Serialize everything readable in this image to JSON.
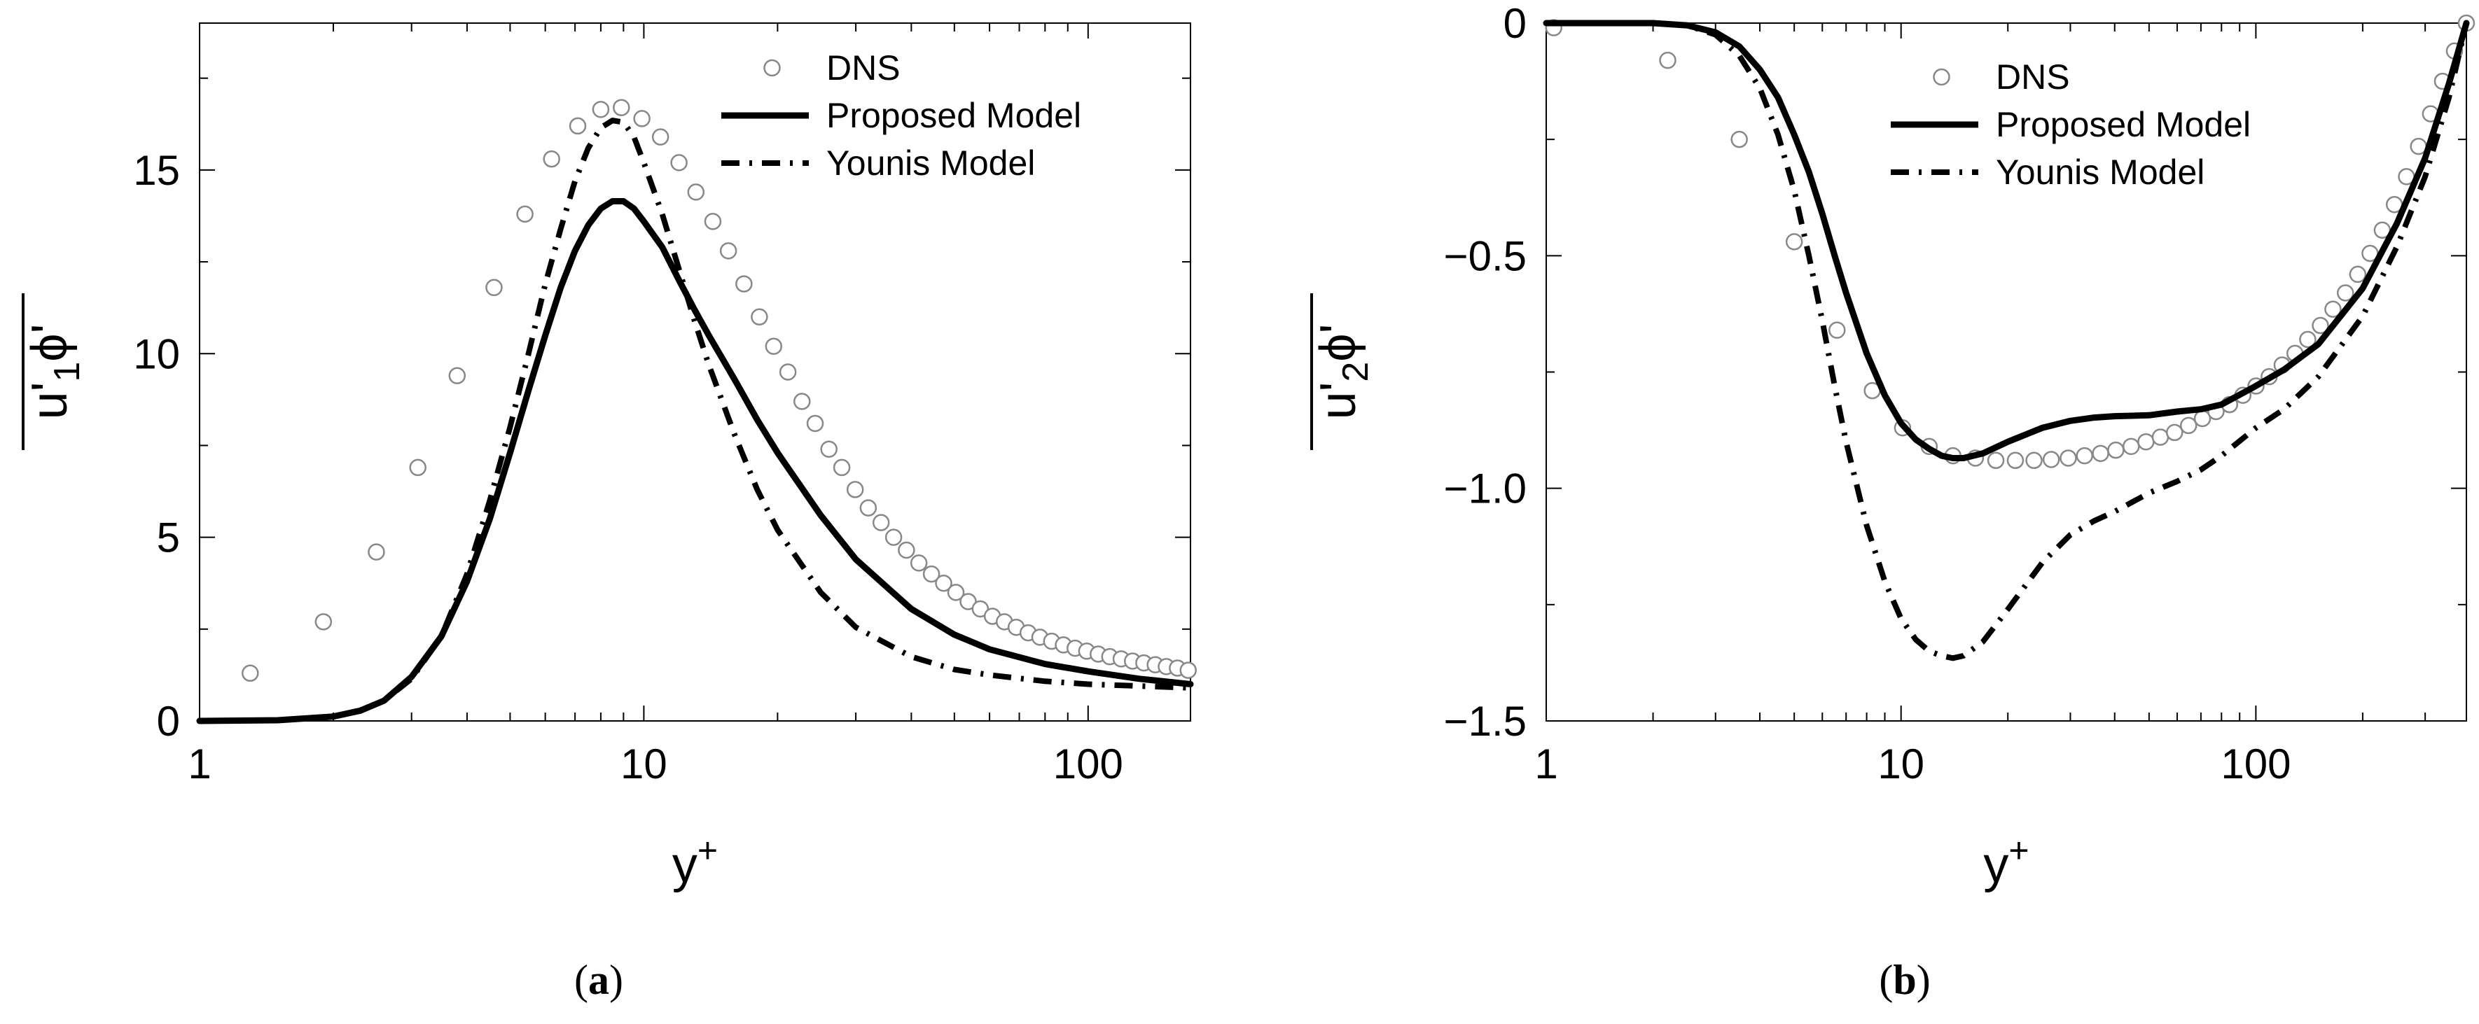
{
  "chart_data": [
    {
      "type": "line",
      "panel_label": "(a)",
      "xlabel": "y",
      "xlabel_sup": "+",
      "ylabel_base": "u",
      "ylabel_sub": "1",
      "ylabel_phi": "ϕ",
      "xscale": "log",
      "xlim": [
        1,
        170
      ],
      "ylim": [
        0,
        19
      ],
      "xticks": [
        1,
        10,
        100
      ],
      "xtick_labels": [
        "1",
        "10",
        "100"
      ],
      "yticks": [
        0,
        5,
        10,
        15
      ],
      "ytick_labels": [
        "0",
        "5",
        "10",
        "15"
      ],
      "legend_position": "top-right",
      "series": [
        {
          "name": "DNS",
          "style": "markers",
          "x": [
            1.3,
            1.9,
            2.5,
            3.1,
            3.8,
            4.6,
            5.4,
            6.2,
            7.1,
            8.0,
            8.9,
            9.9,
            10.9,
            12.0,
            13.1,
            14.3,
            15.5,
            16.8,
            18.2,
            19.6,
            21.1,
            22.7,
            24.3,
            26.1,
            27.9,
            29.9,
            32.0,
            34.2,
            36.5,
            39.0,
            41.6,
            44.4,
            47.3,
            50.4,
            53.7,
            57.2,
            60.9,
            64.8,
            68.9,
            73.3,
            77.9,
            82.8,
            88.0,
            93.5,
            99.3,
            105.4,
            111.9,
            118.7,
            125.9,
            133.5,
            141.6,
            150.0,
            158.9,
            168.0
          ],
          "y": [
            1.3,
            2.7,
            4.6,
            6.9,
            9.4,
            11.8,
            13.8,
            15.3,
            16.2,
            16.65,
            16.7,
            16.4,
            15.9,
            15.2,
            14.4,
            13.6,
            12.8,
            11.9,
            11.0,
            10.2,
            9.5,
            8.7,
            8.1,
            7.4,
            6.9,
            6.3,
            5.8,
            5.4,
            5.0,
            4.65,
            4.3,
            4.0,
            3.75,
            3.5,
            3.25,
            3.05,
            2.85,
            2.7,
            2.55,
            2.4,
            2.28,
            2.17,
            2.07,
            1.98,
            1.9,
            1.82,
            1.75,
            1.69,
            1.63,
            1.58,
            1.53,
            1.48,
            1.44,
            1.38
          ]
        },
        {
          "name": "Proposed Model",
          "style": "solid",
          "x": [
            1,
            1.5,
            2,
            2.3,
            2.6,
            3,
            3.5,
            4,
            4.5,
            5,
            5.5,
            6,
            6.5,
            7,
            7.5,
            8,
            8.5,
            9,
            9.5,
            10,
            11,
            12,
            13,
            14,
            16,
            18,
            20,
            25,
            30,
            40,
            50,
            60,
            80,
            100,
            130,
            170
          ],
          "y": [
            0,
            0.02,
            0.12,
            0.28,
            0.55,
            1.2,
            2.3,
            3.8,
            5.5,
            7.3,
            9.0,
            10.5,
            11.8,
            12.8,
            13.5,
            13.95,
            14.15,
            14.15,
            13.95,
            13.6,
            12.9,
            12.0,
            11.2,
            10.5,
            9.3,
            8.2,
            7.3,
            5.6,
            4.4,
            3.05,
            2.35,
            1.95,
            1.55,
            1.35,
            1.15,
            1.0
          ]
        },
        {
          "name": "Younis Model",
          "style": "dashdot",
          "x": [
            1,
            1.5,
            2,
            2.3,
            2.6,
            3,
            3.5,
            4,
            4.5,
            5,
            5.5,
            6,
            6.5,
            7,
            7.5,
            8,
            8.5,
            9,
            9.5,
            10,
            11,
            12,
            13,
            14,
            16,
            18,
            20,
            25,
            30,
            40,
            50,
            60,
            80,
            100,
            130,
            170
          ],
          "y": [
            0,
            0.02,
            0.12,
            0.28,
            0.55,
            1.15,
            2.3,
            4.0,
            6.0,
            8.0,
            10.0,
            11.9,
            13.4,
            14.7,
            15.6,
            16.15,
            16.35,
            16.3,
            15.9,
            15.2,
            13.8,
            12.3,
            10.9,
            9.7,
            7.8,
            6.3,
            5.2,
            3.5,
            2.55,
            1.75,
            1.4,
            1.25,
            1.08,
            1.0,
            0.95,
            0.9
          ]
        }
      ]
    },
    {
      "type": "line",
      "panel_label": "(b)",
      "xlabel": "y",
      "xlabel_sup": "+",
      "ylabel_base": "u",
      "ylabel_sub": "2",
      "ylabel_phi": "ϕ",
      "xscale": "log",
      "xlim": [
        1,
        392
      ],
      "ylim": [
        -1.5,
        0
      ],
      "xticks": [
        1,
        10,
        100
      ],
      "xtick_labels": [
        "1",
        "10",
        "100"
      ],
      "yticks": [
        0,
        -0.5,
        -1.0,
        -1.5
      ],
      "ytick_labels": [
        "0",
        "−0.5",
        "−1.0",
        "−1.5"
      ],
      "legend_position": "top-right",
      "series": [
        {
          "name": "DNS",
          "style": "markers",
          "x": [
            1.05,
            2.2,
            3.5,
            5.0,
            6.6,
            8.3,
            10.1,
            12.0,
            14.0,
            16.2,
            18.5,
            21.0,
            23.7,
            26.5,
            29.6,
            32.9,
            36.5,
            40.3,
            44.5,
            49.0,
            53.8,
            59.0,
            64.6,
            70.7,
            77.2,
            84.3,
            91.9,
            100.1,
            109.0,
            118.6,
            128.9,
            140.0,
            152.0,
            164.9,
            178.8,
            193.7,
            209.8,
            227.1,
            245.7,
            265.8,
            287.4,
            310.7,
            335.8,
            362.8,
            391.9
          ],
          "y": [
            -0.01,
            -0.08,
            -0.25,
            -0.47,
            -0.66,
            -0.79,
            -0.87,
            -0.91,
            -0.93,
            -0.935,
            -0.94,
            -0.94,
            -0.94,
            -0.938,
            -0.935,
            -0.93,
            -0.925,
            -0.918,
            -0.91,
            -0.9,
            -0.89,
            -0.88,
            -0.865,
            -0.85,
            -0.835,
            -0.82,
            -0.8,
            -0.78,
            -0.76,
            -0.735,
            -0.71,
            -0.68,
            -0.65,
            -0.615,
            -0.58,
            -0.54,
            -0.495,
            -0.445,
            -0.39,
            -0.33,
            -0.265,
            -0.195,
            -0.125,
            -0.06,
            0
          ]
        },
        {
          "name": "Proposed Model",
          "style": "solid",
          "x": [
            1,
            2,
            2.5,
            3,
            3.5,
            4,
            4.5,
            5,
            5.5,
            6,
            6.5,
            7,
            8,
            9,
            10,
            11,
            12,
            13,
            14,
            15,
            17,
            20,
            25,
            30,
            35,
            40,
            50,
            60,
            70,
            80,
            100,
            120,
            150,
            200,
            250,
            300,
            350,
            392
          ],
          "y": [
            0,
            0,
            -0.005,
            -0.02,
            -0.05,
            -0.1,
            -0.16,
            -0.24,
            -0.32,
            -0.41,
            -0.5,
            -0.58,
            -0.71,
            -0.8,
            -0.86,
            -0.895,
            -0.915,
            -0.93,
            -0.935,
            -0.935,
            -0.925,
            -0.9,
            -0.87,
            -0.855,
            -0.848,
            -0.845,
            -0.843,
            -0.835,
            -0.83,
            -0.82,
            -0.78,
            -0.745,
            -0.69,
            -0.57,
            -0.43,
            -0.29,
            -0.13,
            0
          ]
        },
        {
          "name": "Younis Model",
          "style": "dashdot",
          "x": [
            1,
            2,
            2.5,
            3,
            3.5,
            4,
            4.5,
            5,
            5.5,
            6,
            6.5,
            7,
            8,
            9,
            10,
            11,
            12,
            13,
            14,
            15,
            17,
            20,
            25,
            30,
            35,
            40,
            50,
            60,
            70,
            80,
            100,
            120,
            150,
            200,
            250,
            300,
            350,
            392
          ],
          "y": [
            0,
            0,
            -0.005,
            -0.025,
            -0.07,
            -0.14,
            -0.24,
            -0.36,
            -0.5,
            -0.64,
            -0.78,
            -0.9,
            -1.08,
            -1.2,
            -1.28,
            -1.325,
            -1.35,
            -1.36,
            -1.365,
            -1.36,
            -1.33,
            -1.26,
            -1.16,
            -1.1,
            -1.07,
            -1.05,
            -1.01,
            -0.985,
            -0.96,
            -0.93,
            -0.87,
            -0.83,
            -0.76,
            -0.63,
            -0.48,
            -0.33,
            -0.16,
            0
          ]
        }
      ]
    }
  ]
}
